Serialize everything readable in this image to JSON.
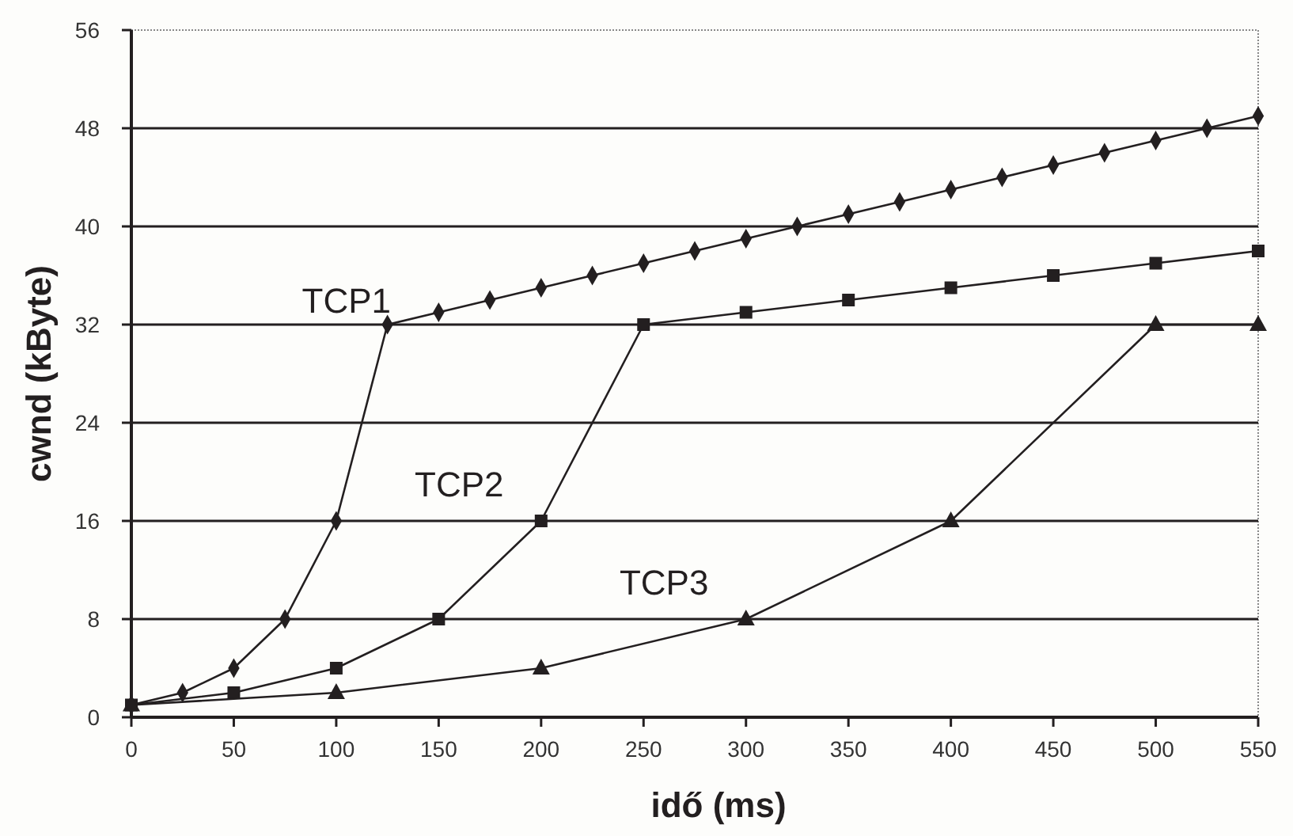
{
  "chart_data": {
    "type": "line",
    "xlabel": "idő (ms)",
    "ylabel": "cwnd (kByte)",
    "xlim": [
      0,
      550
    ],
    "ylim": [
      0,
      56
    ],
    "xticks": [
      0,
      50,
      100,
      150,
      200,
      250,
      300,
      350,
      400,
      450,
      500,
      550
    ],
    "yticks": [
      0,
      8,
      16,
      24,
      32,
      40,
      48,
      56
    ],
    "grid": "y",
    "series": [
      {
        "name": "TCP1",
        "color": "#231f20",
        "marker": "diamond",
        "x": [
          0,
          25,
          50,
          75,
          100,
          125,
          150,
          175,
          200,
          225,
          250,
          275,
          300,
          325,
          350,
          375,
          400,
          425,
          450,
          475,
          500,
          525,
          550
        ],
        "values": [
          1,
          2,
          4,
          8,
          16,
          32,
          33,
          34,
          35,
          36,
          37,
          38,
          39,
          40,
          41,
          42,
          43,
          44,
          45,
          46,
          47,
          48,
          49
        ]
      },
      {
        "name": "TCP2",
        "color": "#231f20",
        "marker": "square",
        "x": [
          0,
          50,
          100,
          150,
          200,
          250,
          300,
          350,
          400,
          450,
          500,
          550
        ],
        "values": [
          1,
          2,
          4,
          8,
          16,
          32,
          33,
          34,
          35,
          36,
          37,
          38
        ]
      },
      {
        "name": "TCP3",
        "color": "#231f20",
        "marker": "triangle",
        "x": [
          0,
          100,
          200,
          300,
          400,
          500,
          550
        ],
        "values": [
          1,
          2,
          4,
          8,
          16,
          32,
          32
        ]
      }
    ]
  }
}
